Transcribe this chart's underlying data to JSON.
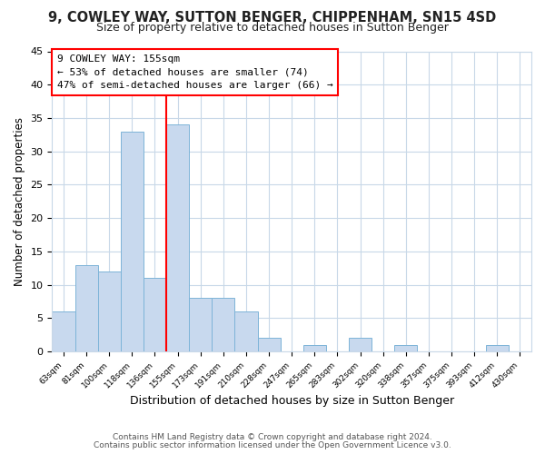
{
  "title1": "9, COWLEY WAY, SUTTON BENGER, CHIPPENHAM, SN15 4SD",
  "title2": "Size of property relative to detached houses in Sutton Benger",
  "xlabel": "Distribution of detached houses by size in Sutton Benger",
  "ylabel": "Number of detached properties",
  "footnote1": "Contains HM Land Registry data © Crown copyright and database right 2024.",
  "footnote2": "Contains public sector information licensed under the Open Government Licence v3.0.",
  "categories": [
    "63sqm",
    "81sqm",
    "100sqm",
    "118sqm",
    "136sqm",
    "155sqm",
    "173sqm",
    "191sqm",
    "210sqm",
    "228sqm",
    "247sqm",
    "265sqm",
    "283sqm",
    "302sqm",
    "320sqm",
    "338sqm",
    "357sqm",
    "375sqm",
    "393sqm",
    "412sqm",
    "430sqm"
  ],
  "values": [
    6,
    13,
    12,
    33,
    11,
    34,
    8,
    8,
    6,
    2,
    0,
    1,
    0,
    2,
    0,
    1,
    0,
    0,
    0,
    1,
    0
  ],
  "bar_color": "#c8d9ee",
  "bar_edge_color": "#7db4d8",
  "highlight_line_color": "red",
  "annotation_title": "9 COWLEY WAY: 155sqm",
  "annotation_line1": "← 53% of detached houses are smaller (74)",
  "annotation_line2": "47% of semi-detached houses are larger (66) →",
  "annotation_box_color": "white",
  "annotation_box_edge_color": "red",
  "ylim": [
    0,
    45
  ],
  "yticks": [
    0,
    5,
    10,
    15,
    20,
    25,
    30,
    35,
    40,
    45
  ],
  "bg_color": "#ffffff",
  "plot_bg_color": "#ffffff",
  "grid_color": "#c8d8e8",
  "title1_fontsize": 10.5,
  "title2_fontsize": 9,
  "xlabel_fontsize": 9,
  "ylabel_fontsize": 8.5,
  "footnote_fontsize": 6.5
}
